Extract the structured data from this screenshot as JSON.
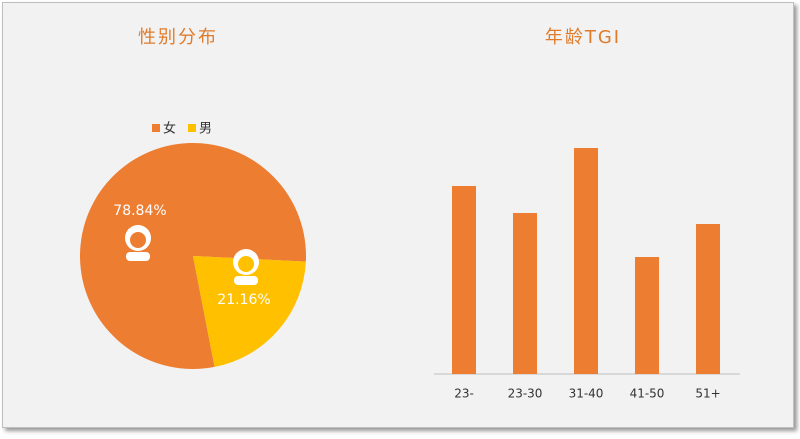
{
  "chart_data": [
    {
      "type": "pie",
      "title": "性别分布",
      "categories": [
        "女",
        "男"
      ],
      "values": [
        78.84,
        21.16
      ],
      "value_labels": [
        "78.84%",
        "21.16%"
      ],
      "colors": [
        "#ed7d31",
        "#ffc000"
      ],
      "legend": "top"
    },
    {
      "type": "bar",
      "title": "年龄TGI",
      "categories": [
        "23-",
        "23-30",
        "31-40",
        "41-50",
        "51+"
      ],
      "values": [
        188,
        161,
        226,
        117,
        150
      ],
      "color": "#ed7d31"
    }
  ]
}
